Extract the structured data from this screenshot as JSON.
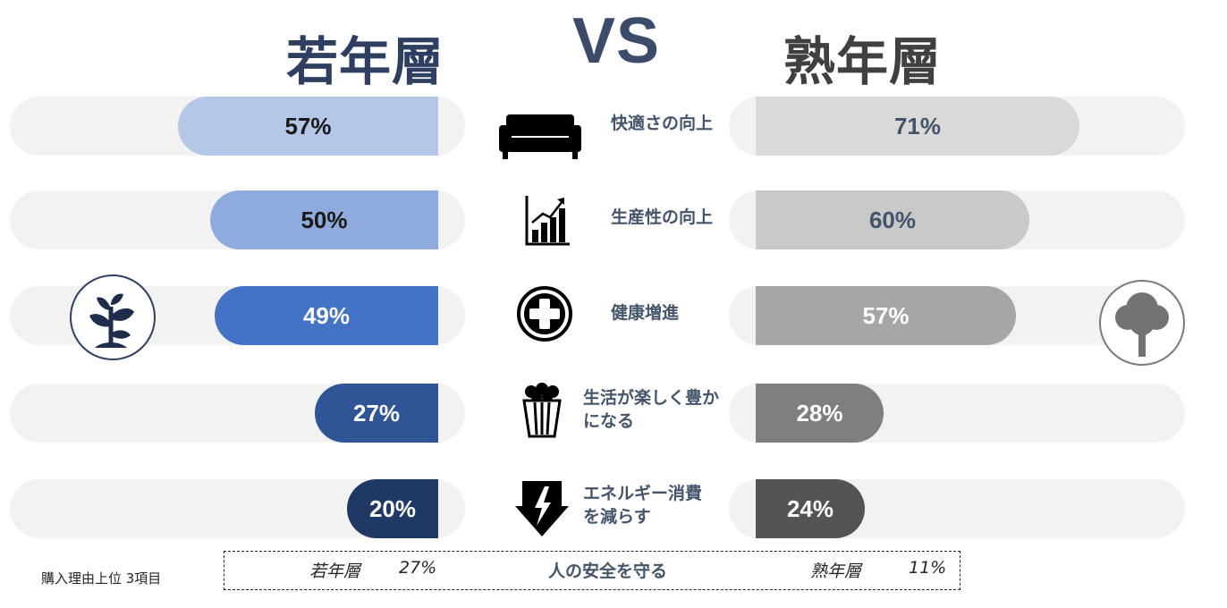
{
  "header": {
    "left_title": "若年層",
    "vs": "VS",
    "right_title": "熟年層"
  },
  "chart_data": {
    "type": "bar",
    "categories": [
      "快適さの向上",
      "生産性の向上",
      "健康増進",
      "生活が楽しく豊かになる",
      "エネルギー消費を減らす"
    ],
    "category_lines": [
      [
        "快適さの向上"
      ],
      [
        "生産性の向上"
      ],
      [
        "健康増進"
      ],
      [
        "生活が楽しく豊か",
        "になる"
      ],
      [
        "エネルギー消費",
        "を減らす"
      ]
    ],
    "series": [
      {
        "name": "若年層",
        "values": [
          57,
          50,
          49,
          27,
          20
        ],
        "labels": [
          "57%",
          "50%",
          "49%",
          "27%",
          "20%"
        ],
        "colors": [
          "#b4c7e7",
          "#8faadc",
          "#4472c4",
          "#2f5597",
          "#203864"
        ],
        "text_colors": [
          "#1a1a1a",
          "#1a1a1a",
          "#ffffff",
          "#ffffff",
          "#ffffff"
        ]
      },
      {
        "name": "熟年層",
        "values": [
          71,
          60,
          57,
          28,
          24
        ],
        "labels": [
          "71%",
          "60%",
          "57%",
          "28%",
          "24%"
        ],
        "colors": [
          "#d9d9d9",
          "#c9c9c9",
          "#a6a6a6",
          "#7f7f7f",
          "#545454"
        ],
        "text_colors": [
          "#44546a",
          "#44546a",
          "#ffffff",
          "#ffffff",
          "#ffffff"
        ]
      }
    ],
    "icons": [
      "sofa-icon",
      "growth-chart-icon",
      "health-cross-icon",
      "popcorn-icon",
      "energy-bolt-icon"
    ],
    "track_color": "#f2f2f2"
  },
  "footer": {
    "note": "購入理由上位 3項目",
    "item_label": "人の安全を守る",
    "young_label": "若年層",
    "young_value": "27%",
    "senior_label": "熟年層",
    "senior_value": "11%"
  },
  "colors": {
    "young_accent": "#2f3f61",
    "senior_accent": "#404040"
  }
}
